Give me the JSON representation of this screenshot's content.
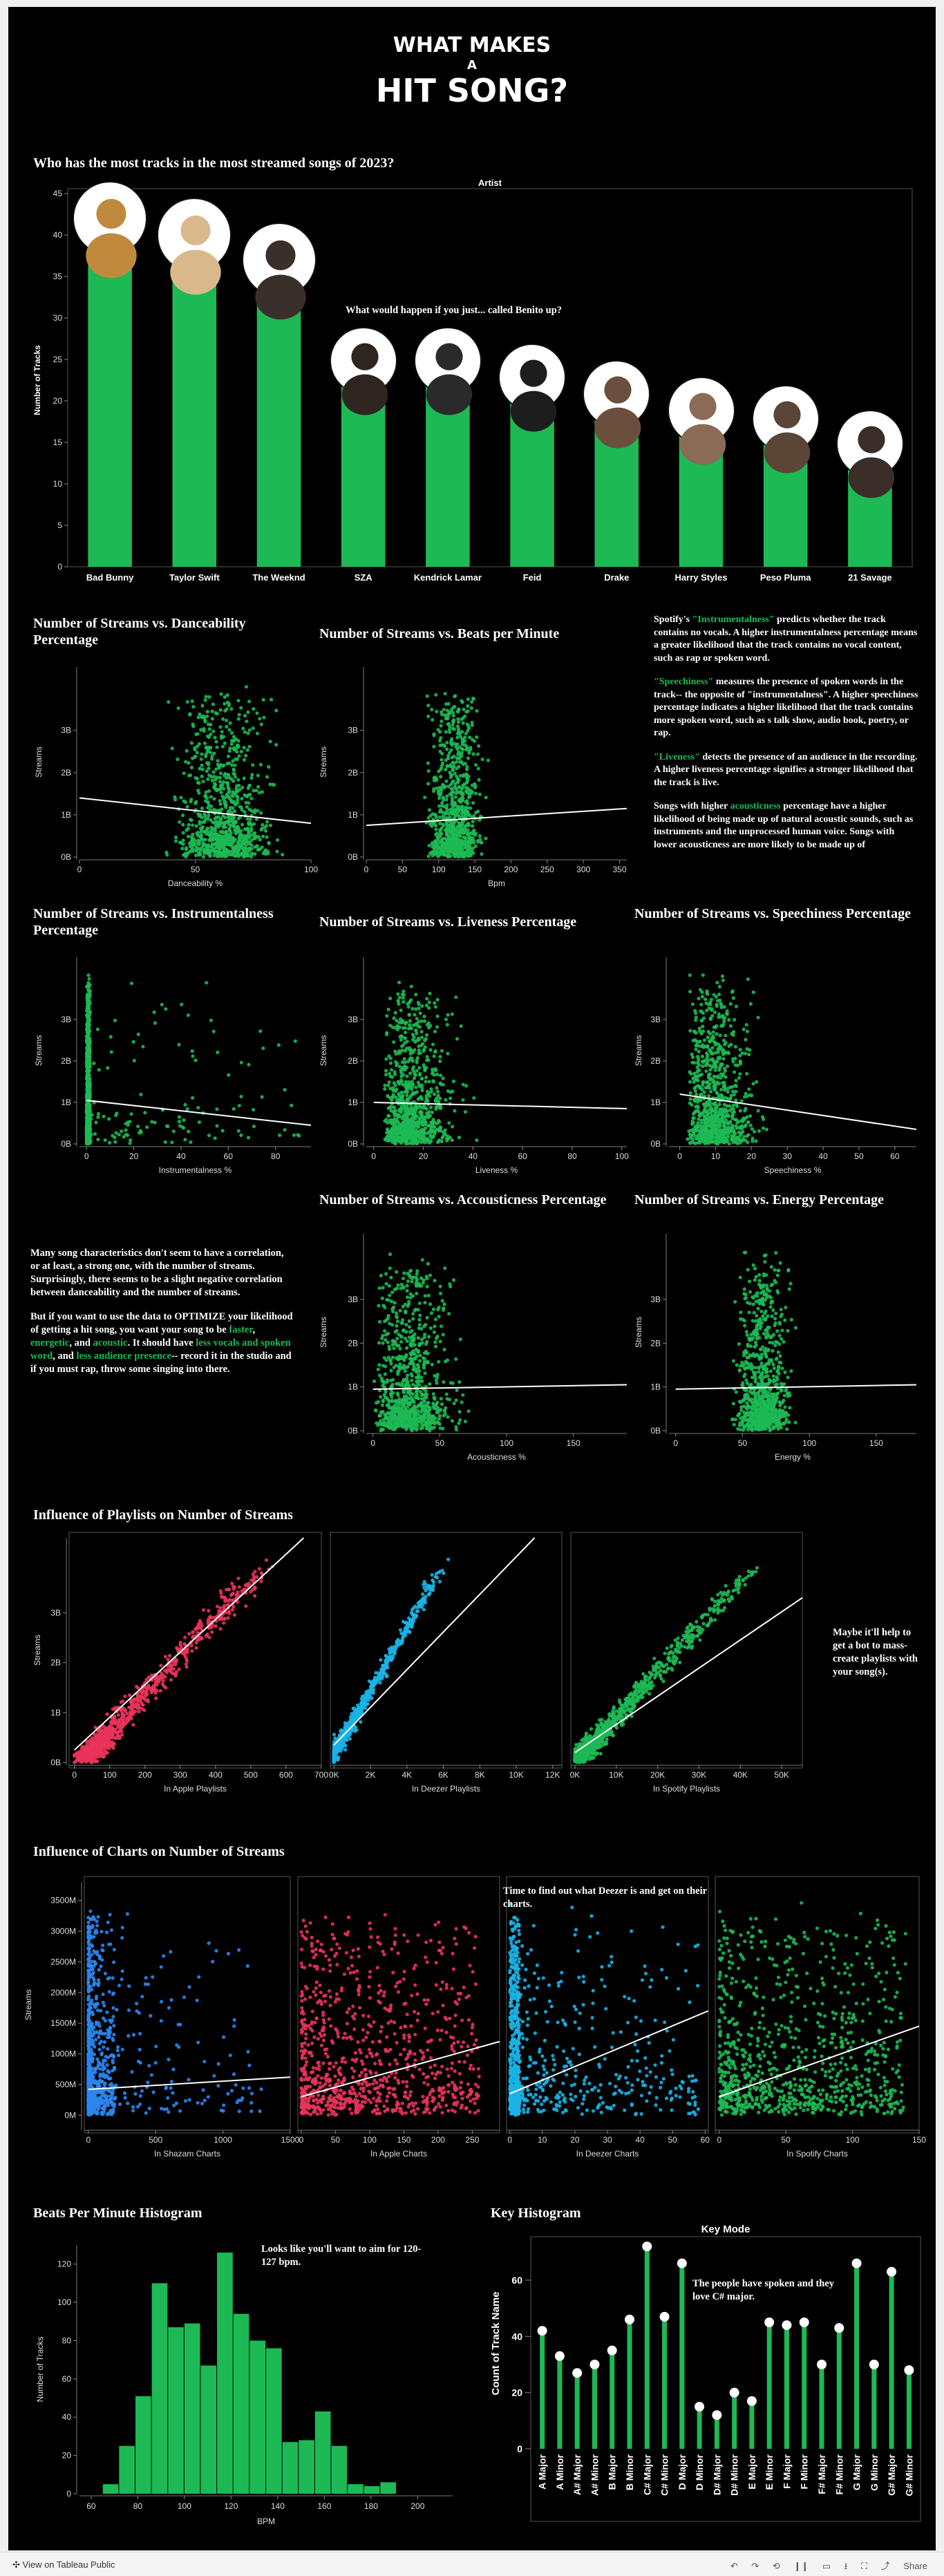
{
  "header": {
    "line1": "WHAT MAKES",
    "line2": "A",
    "line3": "HIT SONG?"
  },
  "colors": {
    "green": "#1db954",
    "red": "#e8335a",
    "cyan": "#1ab3e6",
    "blue": "#2b86ee",
    "white": "#ffffff"
  },
  "artists_section": {
    "title": "Who has the most tracks in the most streamed songs of 2023?",
    "annotation": "What would happen if you just... called Benito up?"
  },
  "chart_data": [
    {
      "id": "artists",
      "type": "bar",
      "title": "Artist",
      "categories": [
        "Bad Bunny",
        "Taylor Swift",
        "The Weeknd",
        "SZA",
        "Kendrick Lamar",
        "Feid",
        "Drake",
        "Harry Styles",
        "Peso Pluma",
        "21 Savage"
      ],
      "values": [
        40,
        38,
        35,
        23,
        23,
        21,
        19,
        17,
        16,
        13
      ],
      "ylabel": "Number of Tracks",
      "ylim": [
        0,
        45
      ],
      "yticks": [
        "0",
        "5",
        "10",
        "15",
        "20",
        "25",
        "30",
        "35",
        "40",
        "45"
      ],
      "color": "#1db954",
      "avatars": [
        "artist photo",
        "artist photo",
        "artist photo",
        "artist photo",
        "artist photo",
        "artist photo",
        "artist photo",
        "artist photo",
        "artist photo",
        "artist photo"
      ]
    },
    {
      "id": "dance",
      "type": "scatter",
      "title": "Number of Streams vs. Danceability Percentage",
      "xlabel": "Danceability %",
      "ylabel": "Streams",
      "xlim": [
        0,
        100
      ],
      "xticks": [
        "0",
        "50",
        "100"
      ],
      "ylim": [
        0,
        4.5
      ],
      "yticks": [
        "0B",
        "1B",
        "2B",
        "3B"
      ],
      "trend": [
        [
          0,
          1.4
        ],
        [
          100,
          0.8
        ]
      ],
      "color": "#1db954"
    },
    {
      "id": "bpm",
      "type": "scatter",
      "title": "Number of Streams vs. Beats per Minute",
      "xlabel": "Bpm",
      "ylabel": "Streams",
      "xlim": [
        0,
        360
      ],
      "xticks": [
        "0",
        "50",
        "100",
        "150",
        "200",
        "250",
        "300",
        "350"
      ],
      "ylim": [
        0,
        4.5
      ],
      "yticks": [
        "0B",
        "1B",
        "2B",
        "3B"
      ],
      "trend": [
        [
          0,
          0.75
        ],
        [
          360,
          1.15
        ]
      ],
      "color": "#1db954"
    },
    {
      "id": "instr",
      "type": "scatter",
      "title": "Number of Streams vs. Instrumentalness Percentage",
      "xlabel": "Instrumentalness %",
      "ylabel": "Streams",
      "xlim": [
        -3,
        95
      ],
      "xticks": [
        "0",
        "20",
        "40",
        "60",
        "80"
      ],
      "ylim": [
        0,
        4.5
      ],
      "yticks": [
        "0B",
        "1B",
        "2B",
        "3B"
      ],
      "trend": [
        [
          0,
          1.05
        ],
        [
          95,
          0.45
        ]
      ],
      "color": "#1db954"
    },
    {
      "id": "live",
      "type": "scatter",
      "title": "Number of Streams vs. Liveness Percentage",
      "xlabel": "Liveness %",
      "ylabel": "Streams",
      "xlim": [
        -3,
        102
      ],
      "xticks": [
        "0",
        "20",
        "40",
        "60",
        "80",
        "100"
      ],
      "ylim": [
        0,
        4.5
      ],
      "yticks": [
        "0B",
        "1B",
        "2B",
        "3B"
      ],
      "trend": [
        [
          0,
          1.0
        ],
        [
          102,
          0.85
        ]
      ],
      "color": "#1db954"
    },
    {
      "id": "speech",
      "type": "scatter",
      "title": "Number of Streams vs. Speechiness Percentage",
      "xlabel": "Speechiness %",
      "ylabel": "Streams",
      "xlim": [
        -3,
        66
      ],
      "xticks": [
        "0",
        "10",
        "20",
        "30",
        "40",
        "50",
        "60"
      ],
      "ylim": [
        0,
        4.5
      ],
      "yticks": [
        "0B",
        "1B",
        "2B",
        "3B"
      ],
      "trend": [
        [
          0,
          1.2
        ],
        [
          66,
          0.35
        ]
      ],
      "color": "#1db954"
    },
    {
      "id": "acoustic",
      "type": "scatter",
      "title": "Number of Streams vs. Accousticness Percentage",
      "xlabel": "Acousticness %",
      "ylabel": "Streams",
      "xlim": [
        -5,
        190
      ],
      "xticks": [
        "0",
        "50",
        "100",
        "150"
      ],
      "ylim": [
        0,
        4.5
      ],
      "yticks": [
        "0B",
        "1B",
        "2B",
        "3B"
      ],
      "trend": [
        [
          0,
          0.95
        ],
        [
          190,
          1.05
        ]
      ],
      "color": "#1db954"
    },
    {
      "id": "energy",
      "type": "scatter",
      "title": "Number of Streams vs. Energy Percentage",
      "xlabel": "Energy %",
      "ylabel": "Streams",
      "xlim": [
        -5,
        180
      ],
      "xticks": [
        "0",
        "50",
        "100",
        "150"
      ],
      "ylim": [
        0,
        4.5
      ],
      "yticks": [
        "0B",
        "1B",
        "2B",
        "3B"
      ],
      "trend": [
        [
          0,
          0.95
        ],
        [
          180,
          1.05
        ]
      ],
      "color": "#1db954"
    },
    {
      "id": "pl_apple",
      "type": "scatter",
      "xlabel": "In Apple Playlists",
      "ylabel": "Streams",
      "xlim": [
        -15,
        700
      ],
      "xticks": [
        "0",
        "100",
        "200",
        "300",
        "400",
        "500",
        "600",
        "700"
      ],
      "ylim": [
        0,
        4.5
      ],
      "yticks": [
        "0B",
        "1B",
        "2B",
        "3B"
      ],
      "trend": [
        [
          0,
          0.25
        ],
        [
          650,
          4.5
        ]
      ],
      "color": "#e8335a"
    },
    {
      "id": "pl_deezer",
      "type": "scatter",
      "xlabel": "In Deezer Playlists",
      "ylabel": "",
      "xlim": [
        -200,
        12500
      ],
      "xticks": [
        "0K",
        "2K",
        "4K",
        "6K",
        "8K",
        "10K",
        "12K"
      ],
      "ylim": [
        0,
        4.5
      ],
      "yticks": [],
      "trend": [
        [
          0,
          0.35
        ],
        [
          11000,
          4.5
        ]
      ],
      "color": "#1ab3e6"
    },
    {
      "id": "pl_spotify",
      "type": "scatter",
      "xlabel": "In Spotify Playlists",
      "ylabel": "",
      "xlim": [
        -1000,
        55000
      ],
      "xticks": [
        "0K",
        "10K",
        "20K",
        "30K",
        "40K",
        "50K"
      ],
      "ylim": [
        0,
        4.5
      ],
      "yticks": [],
      "trend": [
        [
          0,
          0.2
        ],
        [
          55000,
          3.3
        ]
      ],
      "color": "#1db954"
    },
    {
      "id": "ch_shazam",
      "type": "scatter",
      "xlabel": "In Shazam Charts",
      "ylabel": "Streams",
      "xlim": [
        -30,
        1500
      ],
      "xticks": [
        "0",
        "500",
        "1000",
        "1500"
      ],
      "ylim": [
        -200,
        3800
      ],
      "yticks": [
        "0M",
        "500M",
        "1000M",
        "1500M",
        "2000M",
        "2500M",
        "3000M",
        "3500M"
      ],
      "trend": [
        [
          0,
          420
        ],
        [
          1500,
          620
        ]
      ],
      "color": "#2b86ee"
    },
    {
      "id": "ch_apple",
      "type": "scatter",
      "xlabel": "In Apple Charts",
      "ylabel": "",
      "xlim": [
        -5,
        290
      ],
      "xticks": [
        "0",
        "50",
        "100",
        "150",
        "200",
        "250"
      ],
      "ylim": [
        -200,
        3800
      ],
      "yticks": [],
      "trend": [
        [
          0,
          300
        ],
        [
          290,
          1200
        ]
      ],
      "color": "#e8335a"
    },
    {
      "id": "ch_deezer",
      "type": "scatter",
      "xlabel": "In Deezer Charts",
      "ylabel": "",
      "xlim": [
        -1,
        61
      ],
      "xticks": [
        "0",
        "10",
        "20",
        "30",
        "40",
        "50",
        "60"
      ],
      "ylim": [
        -200,
        3800
      ],
      "yticks": [],
      "trend": [
        [
          0,
          350
        ],
        [
          61,
          1700
        ]
      ],
      "color": "#1ab3e6"
    },
    {
      "id": "ch_spotify",
      "type": "scatter",
      "xlabel": "In Spotify Charts",
      "ylabel": "",
      "xlim": [
        -3,
        150
      ],
      "xticks": [
        "0",
        "50",
        "100",
        "150"
      ],
      "ylim": [
        -200,
        3800
      ],
      "yticks": [],
      "trend": [
        [
          0,
          300
        ],
        [
          150,
          1450
        ]
      ],
      "color": "#1db954"
    },
    {
      "id": "bpm_hist",
      "type": "bar",
      "title": "Beats Per Minute Histogram",
      "categories": [
        "65",
        "72",
        "79",
        "86",
        "93",
        "100",
        "107",
        "114",
        "121",
        "128",
        "135",
        "142",
        "149",
        "156",
        "163",
        "170",
        "177",
        "184",
        "191",
        "198"
      ],
      "values": [
        5,
        25,
        51,
        110,
        87,
        89,
        67,
        126,
        94,
        80,
        76,
        27,
        28,
        43,
        25,
        5,
        4,
        6,
        0,
        0
      ],
      "xlabel": "BPM",
      "ylabel": "Number of Tracks",
      "xlim": [
        55,
        215
      ],
      "xticks": [
        "60",
        "80",
        "100",
        "120",
        "140",
        "160",
        "180",
        "200"
      ],
      "ylim": [
        0,
        130
      ],
      "yticks": [
        "0",
        "20",
        "40",
        "60",
        "80",
        "100",
        "120"
      ],
      "color": "#1db954"
    },
    {
      "id": "key_hist",
      "type": "bar",
      "title": "Key Mode",
      "categories": [
        "A Major",
        "A Minor",
        "A# Major",
        "A# Minor",
        "B Major",
        "B Minor",
        "C# Major",
        "C# Minor",
        "D Major",
        "D Minor",
        "D# Major",
        "D# Minor",
        "E Major",
        "E Minor",
        "F Major",
        "F Minor",
        "F# Major",
        "F# Minor",
        "G Major",
        "G Minor",
        "G# Major",
        "G# Minor"
      ],
      "values": [
        42,
        33,
        27,
        30,
        35,
        46,
        72,
        47,
        66,
        15,
        12,
        20,
        17,
        45,
        44,
        45,
        30,
        43,
        66,
        30,
        63,
        28
      ],
      "ylabel": "Count of Track Name",
      "ylim": [
        0,
        75
      ],
      "yticks": [
        "0",
        "20",
        "40",
        "60"
      ],
      "color": "#1db954"
    }
  ],
  "annotations": {
    "key": "The people have spoken and they love C# major.",
    "bpm": "Looks like you'll want to aim for 120-127 bpm.",
    "deezer": "Time to find out what Deezer is and get on their charts.",
    "bot": "Maybe it'll help to get a bot to mass-create playlists with your song(s)."
  },
  "sections": {
    "playlists": "Influence of Playlists on Number of Streams",
    "charts": "Influence of Charts on Number of Streams",
    "key_histogram": "Key Histogram"
  },
  "notes": {
    "instr_a": "Spotify's ",
    "instr_b": "\"Instrumentalness\"",
    "instr_c": " predicts whether the track contains no vocals. A higher instrumentalness percentage means a greater likelihood that the track contains no vocal content, such as rap or spoken word.",
    "speech_b": "\"Speechiness\"",
    "speech_c": " measures the presence of spoken words in the track-- the opposite of \"instrumentalness\". A higher speechiness percentage indicates a higher likelihood that the track contains more spoken word, such as s talk show, audio book, poetry, or rap.",
    "live_b": "\"Liveness\"",
    "live_c": " detects the presence of an audience in the recording. A higher liveness percentage signifies a stronger likelihood that the track is live.",
    "acou_a": "Songs with higher ",
    "acou_b": "acousticness",
    "acou_c": " percentage have a higher likelihood of being made up of natural acoustic sounds, such as instruments and the unprocessed human voice. Songs with lower acousticness are more likely to be made up of",
    "conc1": "Many song characteristics don't seem to have a correlation, or at least, a strong one, with the number of streams. Surprisingly, there seems to be a slight negative correlation between danceability and the number of streams.",
    "conc2a": "But if you want to use the data to OPTIMIZE your likelihood of getting a hit song, you want your song to be ",
    "conc2b": "faster",
    "conc2c": ", ",
    "conc2d": "energetic",
    "conc2e": ", and ",
    "conc2f": "acoustic",
    "conc2g": ". It should have ",
    "conc2h": "less vocals and spoken word",
    "conc2i": ", and ",
    "conc2j": "less audience presence",
    "conc2k": "-- record it in the studio and if you must rap, throw some singing into there."
  },
  "footer": {
    "left": "View on Tableau Public",
    "share": "Share"
  }
}
